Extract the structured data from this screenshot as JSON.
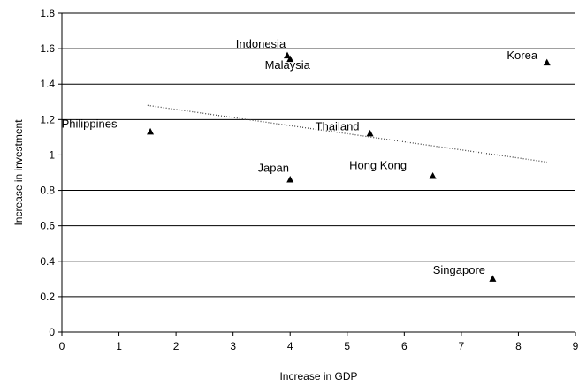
{
  "chart_data": {
    "type": "scatter",
    "title": "",
    "xlabel": "Increase in GDP",
    "ylabel": "Increase in investment",
    "xlim": [
      0,
      9
    ],
    "ylim": [
      0,
      1.8
    ],
    "x_ticks": [
      "0",
      "1",
      "2",
      "3",
      "4",
      "5",
      "6",
      "7",
      "8",
      "9"
    ],
    "y_ticks": [
      "0",
      "0.2",
      "0.4",
      "0.6",
      "0.8",
      "1",
      "1.2",
      "1.4",
      "1.6",
      "1.8"
    ],
    "grid": "horizontal",
    "marker": "triangle",
    "marker_color": "#000000",
    "points": [
      {
        "label": "Indonesia",
        "x": 3.95,
        "y": 1.56
      },
      {
        "label": "Malaysia",
        "x": 4.0,
        "y": 1.54
      },
      {
        "label": "Korea",
        "x": 8.5,
        "y": 1.52
      },
      {
        "label": "Philippines",
        "x": 1.55,
        "y": 1.13
      },
      {
        "label": "Thailand",
        "x": 5.4,
        "y": 1.12
      },
      {
        "label": "Japan",
        "x": 4.0,
        "y": 0.86
      },
      {
        "label": "Hong Kong",
        "x": 6.5,
        "y": 0.88
      },
      {
        "label": "Singapore",
        "x": 7.55,
        "y": 0.3
      }
    ],
    "trendline": {
      "style": "dotted",
      "x": [
        1.5,
        8.5
      ],
      "y": [
        1.28,
        0.96
      ]
    }
  }
}
